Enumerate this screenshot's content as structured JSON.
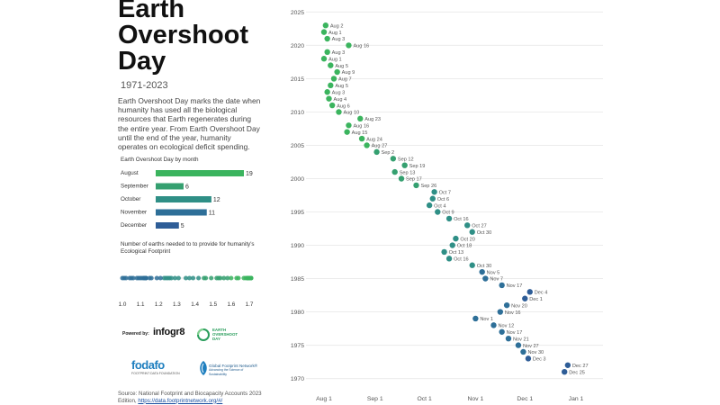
{
  "title_lines": [
    "Earth",
    "Overshoot",
    "Day"
  ],
  "years": "1971-2023",
  "description": "Earth Overshoot Day marks the date when humanity has used all the biological resources that Earth regenerates during the entire year. From Earth Overshoot Day until the end of the year, humanity operates on ecological deficit spending.",
  "bar_title": "Earth Overshoot Day by month",
  "earths_title": "Number of earths needed to to provide for humanity's Ecological Footprint",
  "powered_by": "Powered by:",
  "infogr8": "infogr8",
  "eod_logo_lines": [
    "EARTH",
    "OVERSHOOT",
    "DAY"
  ],
  "fodafo": "fodafo",
  "fodafo_sub": "FOOTPRINT DATA FOUNDATION",
  "gfn_lines": [
    "Global Footprint Network®",
    "Advancing the Science of Sustainability"
  ],
  "source_text": "Source: National Footprint and Biocapacity Accounts 2023 Edition,",
  "source_link": "https://data.footprintnetwork.org/#/",
  "colors": {
    "green": "#3bb45e",
    "teal": "#2f8f86",
    "blue": "#2e5d97",
    "grid": "#ececec",
    "label": "#555555"
  },
  "chart_data": [
    {
      "type": "bar",
      "title": "Earth Overshoot Day by month",
      "categories": [
        "August",
        "September",
        "October",
        "November",
        "December"
      ],
      "values": [
        19,
        6,
        12,
        11,
        5
      ],
      "colors": [
        "#3bb45e",
        "#35a070",
        "#2f8f86",
        "#2e6f98",
        "#2e5d97"
      ],
      "orientation": "horizontal"
    },
    {
      "type": "scatter",
      "title": "Number of earths needed to to provide for humanity's Ecological Footprint",
      "ticks": [
        "1.0",
        "1.1",
        "1.2",
        "1.3",
        "1.4",
        "1.5",
        "1.6",
        "1.7"
      ],
      "xlim": [
        1.0,
        1.7
      ],
      "values": [
        1.7,
        1.69,
        1.71,
        1.68,
        1.71,
        1.71,
        1.7,
        1.69,
        1.69,
        1.7,
        1.69,
        1.67,
        1.64,
        1.63,
        1.6,
        1.58,
        1.56,
        1.54,
        1.53,
        1.52,
        1.49,
        1.46,
        1.45,
        1.42,
        1.39,
        1.37,
        1.35,
        1.31,
        1.29,
        1.26,
        1.27,
        1.23,
        1.25,
        1.24,
        1.21,
        1.19,
        1.16,
        1.13,
        1.09,
        1.08,
        1.12,
        1.13,
        1.12,
        1.15,
        1.13,
        1.11,
        1.1,
        1.06,
        1.05,
        1.04,
        1.02,
        1.0,
        1.01
      ]
    },
    {
      "type": "scatter",
      "title": "Earth Overshoot Day by year",
      "x_ticks": [
        "Aug 1",
        "Sep 1",
        "Oct 1",
        "Nov 1",
        "Dec 1",
        "Jan 1"
      ],
      "x_tick_days": [
        0,
        31,
        61,
        92,
        122,
        153
      ],
      "y_ticks": [
        1970,
        1975,
        1980,
        1985,
        1990,
        1995,
        2000,
        2005,
        2010,
        2015,
        2020,
        2025
      ],
      "ylim": [
        1969,
        2026
      ],
      "points": [
        {
          "year": 2023,
          "label": "Aug 2"
        },
        {
          "year": 2022,
          "label": "Aug 1"
        },
        {
          "year": 2021,
          "label": "Aug 3"
        },
        {
          "year": 2020,
          "label": "Aug 16"
        },
        {
          "year": 2019,
          "label": "Aug 3"
        },
        {
          "year": 2018,
          "label": "Aug 1"
        },
        {
          "year": 2017,
          "label": "Aug 5"
        },
        {
          "year": 2016,
          "label": "Aug 9"
        },
        {
          "year": 2015,
          "label": "Aug 7"
        },
        {
          "year": 2014,
          "label": "Aug 5"
        },
        {
          "year": 2013,
          "label": "Aug 3"
        },
        {
          "year": 2012,
          "label": "Aug 4"
        },
        {
          "year": 2011,
          "label": "Aug 6"
        },
        {
          "year": 2010,
          "label": "Aug 10"
        },
        {
          "year": 2009,
          "label": "Aug 23"
        },
        {
          "year": 2008,
          "label": "Aug 16"
        },
        {
          "year": 2007,
          "label": "Aug 15"
        },
        {
          "year": 2006,
          "label": "Aug 24"
        },
        {
          "year": 2005,
          "label": "Aug 27"
        },
        {
          "year": 2004,
          "label": "Sep 2"
        },
        {
          "year": 2003,
          "label": "Sep 12"
        },
        {
          "year": 2002,
          "label": "Sep 19"
        },
        {
          "year": 2001,
          "label": "Sep 13"
        },
        {
          "year": 2000,
          "label": "Sep 17"
        },
        {
          "year": 1999,
          "label": "Sep 26"
        },
        {
          "year": 1998,
          "label": "Oct 7"
        },
        {
          "year": 1997,
          "label": "Oct 6"
        },
        {
          "year": 1996,
          "label": "Oct 4"
        },
        {
          "year": 1995,
          "label": "Oct 9"
        },
        {
          "year": 1994,
          "label": "Oct 16"
        },
        {
          "year": 1993,
          "label": "Oct 27"
        },
        {
          "year": 1992,
          "label": "Oct 30"
        },
        {
          "year": 1991,
          "label": "Oct 20"
        },
        {
          "year": 1990,
          "label": "Oct 18"
        },
        {
          "year": 1989,
          "label": "Oct 13"
        },
        {
          "year": 1988,
          "label": "Oct 16"
        },
        {
          "year": 1987,
          "label": "Oct 30"
        },
        {
          "year": 1986,
          "label": "Nov 5"
        },
        {
          "year": 1985,
          "label": "Nov 7"
        },
        {
          "year": 1984,
          "label": "Nov 17"
        },
        {
          "year": 1983,
          "label": "Dec 4"
        },
        {
          "year": 1982,
          "label": "Dec 1"
        },
        {
          "year": 1981,
          "label": "Nov 20"
        },
        {
          "year": 1980,
          "label": "Nov 16"
        },
        {
          "year": 1979,
          "label": "Nov 1"
        },
        {
          "year": 1978,
          "label": "Nov 12"
        },
        {
          "year": 1977,
          "label": "Nov 17"
        },
        {
          "year": 1976,
          "label": "Nov 21"
        },
        {
          "year": 1975,
          "label": "Nov 27"
        },
        {
          "year": 1974,
          "label": "Nov 30"
        },
        {
          "year": 1973,
          "label": "Dec 3"
        },
        {
          "year": 1972,
          "label": "Dec 27"
        },
        {
          "year": 1971,
          "label": "Dec 25"
        }
      ]
    }
  ]
}
